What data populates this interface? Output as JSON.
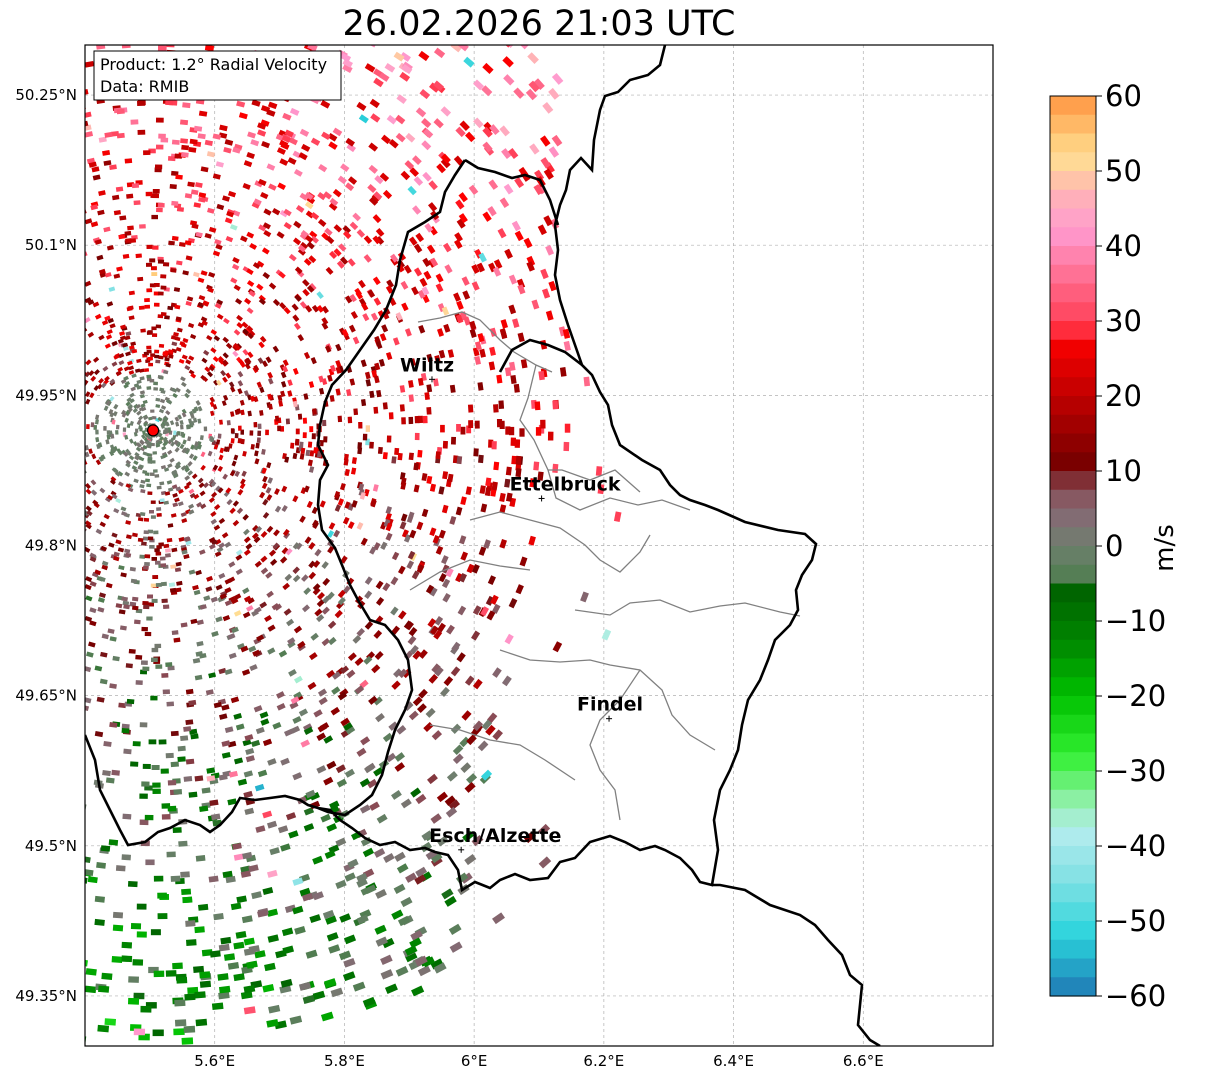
{
  "title": "26.02.2026 21:03 UTC",
  "info_box": {
    "product": "Product: 1.2° Radial Velocity",
    "source": "Data: RMIB"
  },
  "axes": {
    "lon_ticks": [
      {
        "value": 5.6,
        "label": "5.6°E"
      },
      {
        "value": 5.8,
        "label": "5.8°E"
      },
      {
        "value": 6.0,
        "label": "6°E"
      },
      {
        "value": 6.2,
        "label": "6.2°E"
      },
      {
        "value": 6.4,
        "label": "6.4°E"
      },
      {
        "value": 6.6,
        "label": "6.6°E"
      }
    ],
    "lat_ticks": [
      {
        "value": 50.25,
        "label": "50.25°N"
      },
      {
        "value": 50.1,
        "label": "50.1°N"
      },
      {
        "value": 49.95,
        "label": "49.95°N"
      },
      {
        "value": 49.8,
        "label": "49.8°N"
      },
      {
        "value": 49.65,
        "label": "49.65°N"
      },
      {
        "value": 49.5,
        "label": "49.5°N"
      },
      {
        "value": 49.35,
        "label": "49.35°N"
      }
    ],
    "lon_range": [
      5.4,
      6.8
    ],
    "lat_range": [
      49.3,
      50.3
    ],
    "grid": true
  },
  "radar_site": {
    "lon": 5.505,
    "lat": 49.915,
    "color": "#ff0000"
  },
  "cities": [
    {
      "name": "Wiltz",
      "lon": 5.935,
      "lat": 49.966
    },
    {
      "name": "Ettelbruck",
      "lon": 6.104,
      "lat": 49.847
    },
    {
      "name": "Findel",
      "lon": 6.208,
      "lat": 49.627
    },
    {
      "name": "Esch/Alzette",
      "lon": 5.98,
      "lat": 49.496
    }
  ],
  "colorbar": {
    "label": "m/s",
    "min": -60,
    "max": 60,
    "ticks": [
      {
        "value": 60,
        "label": "60"
      },
      {
        "value": 50,
        "label": "50"
      },
      {
        "value": 40,
        "label": "40"
      },
      {
        "value": 30,
        "label": "30"
      },
      {
        "value": 20,
        "label": "20"
      },
      {
        "value": 10,
        "label": "10"
      },
      {
        "value": 0,
        "label": "0"
      },
      {
        "value": -10,
        "label": "−10"
      },
      {
        "value": -20,
        "label": "−20"
      },
      {
        "value": -30,
        "label": "−30"
      },
      {
        "value": -40,
        "label": "−40"
      },
      {
        "value": -50,
        "label": "−50"
      },
      {
        "value": -60,
        "label": "−60"
      }
    ],
    "stops": [
      {
        "value": -60,
        "color": "#1f77b4"
      },
      {
        "value": -52,
        "color": "#2ad4dc"
      },
      {
        "value": -45,
        "color": "#7de0e3"
      },
      {
        "value": -38,
        "color": "#b4ecee"
      },
      {
        "value": -34,
        "color": "#8ff0a8"
      },
      {
        "value": -28,
        "color": "#33f033"
      },
      {
        "value": -20,
        "color": "#00c000"
      },
      {
        "value": -13,
        "color": "#008800"
      },
      {
        "value": -6,
        "color": "#006400"
      },
      {
        "value": -5,
        "color": "#4d7d4d"
      },
      {
        "value": 0,
        "color": "#6e7f6e"
      },
      {
        "value": 4,
        "color": "#836b73"
      },
      {
        "value": 8,
        "color": "#8a4b55"
      },
      {
        "value": 10,
        "color": "#700000"
      },
      {
        "value": 18,
        "color": "#b00000"
      },
      {
        "value": 28,
        "color": "#ff0000"
      },
      {
        "value": 29,
        "color": "#ff3a50"
      },
      {
        "value": 36,
        "color": "#ff6f92"
      },
      {
        "value": 42,
        "color": "#ff9ad0"
      },
      {
        "value": 47,
        "color": "#ffb3b6"
      },
      {
        "value": 52,
        "color": "#ffe090"
      },
      {
        "value": 60,
        "color": "#ff9440"
      }
    ]
  }
}
